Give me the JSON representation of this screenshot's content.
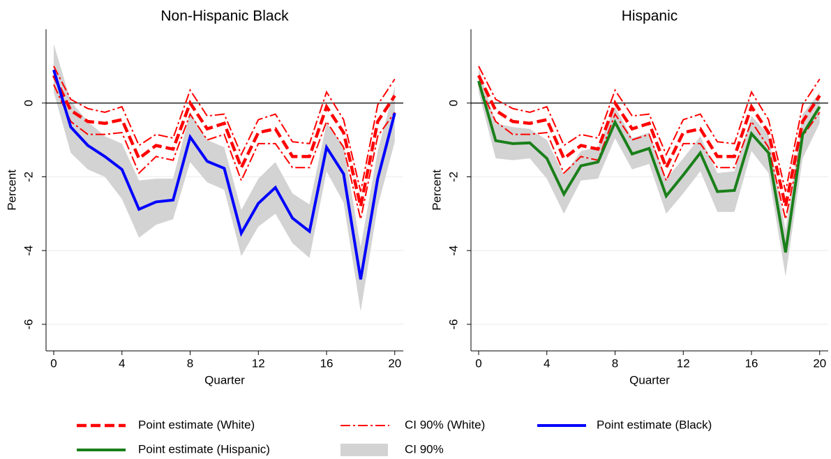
{
  "chart_data": [
    {
      "type": "line",
      "title": "Non-Hispanic Black",
      "xlabel": "Quarter",
      "ylabel": "Percent",
      "x": [
        0,
        1,
        2,
        3,
        4,
        5,
        6,
        7,
        8,
        9,
        10,
        11,
        12,
        13,
        14,
        15,
        16,
        17,
        18,
        19,
        20
      ],
      "xlim": [
        -0.45,
        20.5
      ],
      "ylim": [
        -6.72,
        2.0
      ],
      "xticks": [
        0,
        4,
        8,
        12,
        16,
        20
      ],
      "yticks": [
        0,
        -2,
        -4,
        -6
      ],
      "grid": true,
      "hline": 0,
      "series": [
        {
          "name": "CI 90%",
          "color": "#d3d3d3",
          "style": "band",
          "upper": [
            1.6,
            0.05,
            -0.5,
            -0.9,
            -1.1,
            -2.1,
            -2.05,
            -2.05,
            -0.25,
            -1.0,
            -1.2,
            -2.9,
            -2.05,
            -1.6,
            -2.45,
            -2.75,
            -0.55,
            -1.15,
            -3.9,
            -1.3,
            0.45
          ],
          "lower": [
            0.3,
            -1.35,
            -1.8,
            -2.0,
            -2.6,
            -3.65,
            -3.3,
            -3.15,
            -1.6,
            -2.15,
            -2.35,
            -4.15,
            -3.35,
            -3.0,
            -3.8,
            -4.2,
            -1.85,
            -2.7,
            -5.65,
            -2.8,
            -1.05
          ]
        },
        {
          "name": "CI 90% (White)",
          "color": "#ff0000",
          "style": "dashdot",
          "upper": [
            1.0,
            0.1,
            -0.15,
            -0.25,
            -0.1,
            -1.15,
            -0.85,
            -0.95,
            0.35,
            -0.35,
            -0.3,
            -1.4,
            -0.45,
            -0.3,
            -1.05,
            -1.1,
            0.3,
            -0.45,
            -2.4,
            -0.05,
            0.65
          ],
          "lower": [
            0.5,
            -0.5,
            -0.85,
            -0.85,
            -0.8,
            -1.9,
            -1.45,
            -1.55,
            -0.3,
            -1.0,
            -0.85,
            -2.1,
            -1.1,
            -1.1,
            -1.75,
            -1.75,
            -0.5,
            -1.2,
            -3.15,
            -0.9,
            -0.25
          ]
        },
        {
          "name": "Point estimate (White)",
          "color": "#ff0000",
          "style": "dash",
          "values": [
            0.75,
            -0.2,
            -0.5,
            -0.55,
            -0.45,
            -1.5,
            -1.15,
            -1.25,
            0.0,
            -0.7,
            -0.55,
            -1.75,
            -0.8,
            -0.7,
            -1.45,
            -1.45,
            -0.1,
            -0.8,
            -2.8,
            -0.5,
            0.2
          ]
        },
        {
          "name": "Point estimate (Black)",
          "color": "#0000ff",
          "style": "solid",
          "values": [
            0.9,
            -0.65,
            -1.15,
            -1.45,
            -1.8,
            -2.88,
            -2.68,
            -2.63,
            -0.92,
            -1.58,
            -1.77,
            -3.53,
            -2.72,
            -2.29,
            -3.12,
            -3.48,
            -1.2,
            -1.92,
            -4.78,
            -2.05,
            -0.27
          ]
        }
      ]
    },
    {
      "type": "line",
      "title": "Hispanic",
      "xlabel": "Quarter",
      "ylabel": "Percent",
      "x": [
        0,
        1,
        2,
        3,
        4,
        5,
        6,
        7,
        8,
        9,
        10,
        11,
        12,
        13,
        14,
        15,
        16,
        17,
        18,
        19,
        20
      ],
      "xlim": [
        -0.45,
        20.5
      ],
      "ylim": [
        -6.72,
        2.0
      ],
      "xticks": [
        0,
        4,
        8,
        12,
        16,
        20
      ],
      "yticks": [
        0,
        -2,
        -4,
        -6
      ],
      "grid": true,
      "hline": 0,
      "series": [
        {
          "name": "CI 90%",
          "color": "#d3d3d3",
          "style": "band",
          "upper": [
            0.95,
            -0.55,
            -0.65,
            -0.7,
            -1.0,
            -1.95,
            -1.3,
            -1.2,
            -0.1,
            -0.95,
            -0.8,
            -2.05,
            -1.5,
            -0.9,
            -1.9,
            -1.85,
            -0.35,
            -0.85,
            -3.45,
            -0.3,
            0.3
          ],
          "lower": [
            0.3,
            -1.5,
            -1.55,
            -1.5,
            -2.05,
            -3.0,
            -2.1,
            -2.05,
            -0.95,
            -1.8,
            -1.65,
            -3.0,
            -2.45,
            -1.85,
            -2.95,
            -2.95,
            -1.3,
            -1.9,
            -4.7,
            -1.5,
            -0.55
          ]
        },
        {
          "name": "CI 90% (White)",
          "color": "#ff0000",
          "style": "dashdot",
          "upper": [
            1.0,
            0.1,
            -0.15,
            -0.25,
            -0.1,
            -1.15,
            -0.85,
            -0.95,
            0.35,
            -0.35,
            -0.3,
            -1.4,
            -0.45,
            -0.3,
            -1.05,
            -1.1,
            0.3,
            -0.45,
            -2.4,
            -0.05,
            0.65
          ],
          "lower": [
            0.5,
            -0.5,
            -0.85,
            -0.85,
            -0.8,
            -1.9,
            -1.45,
            -1.55,
            -0.3,
            -1.0,
            -0.85,
            -2.1,
            -1.1,
            -1.1,
            -1.75,
            -1.75,
            -0.5,
            -1.2,
            -3.15,
            -0.9,
            -0.25
          ]
        },
        {
          "name": "Point estimate (White)",
          "color": "#ff0000",
          "style": "dash",
          "values": [
            0.75,
            -0.2,
            -0.5,
            -0.55,
            -0.45,
            -1.5,
            -1.15,
            -1.25,
            0.0,
            -0.7,
            -0.55,
            -1.75,
            -0.8,
            -0.7,
            -1.45,
            -1.45,
            -0.1,
            -0.8,
            -2.8,
            -0.5,
            0.2
          ]
        },
        {
          "name": "Point estimate (Hispanic)",
          "color": "#1a7f1a",
          "style": "solid",
          "values": [
            0.6,
            -1.02,
            -1.1,
            -1.08,
            -1.5,
            -2.47,
            -1.7,
            -1.6,
            -0.52,
            -1.38,
            -1.23,
            -2.52,
            -1.95,
            -1.35,
            -2.4,
            -2.37,
            -0.83,
            -1.35,
            -4.05,
            -0.85,
            -0.1
          ]
        }
      ]
    }
  ]
}
